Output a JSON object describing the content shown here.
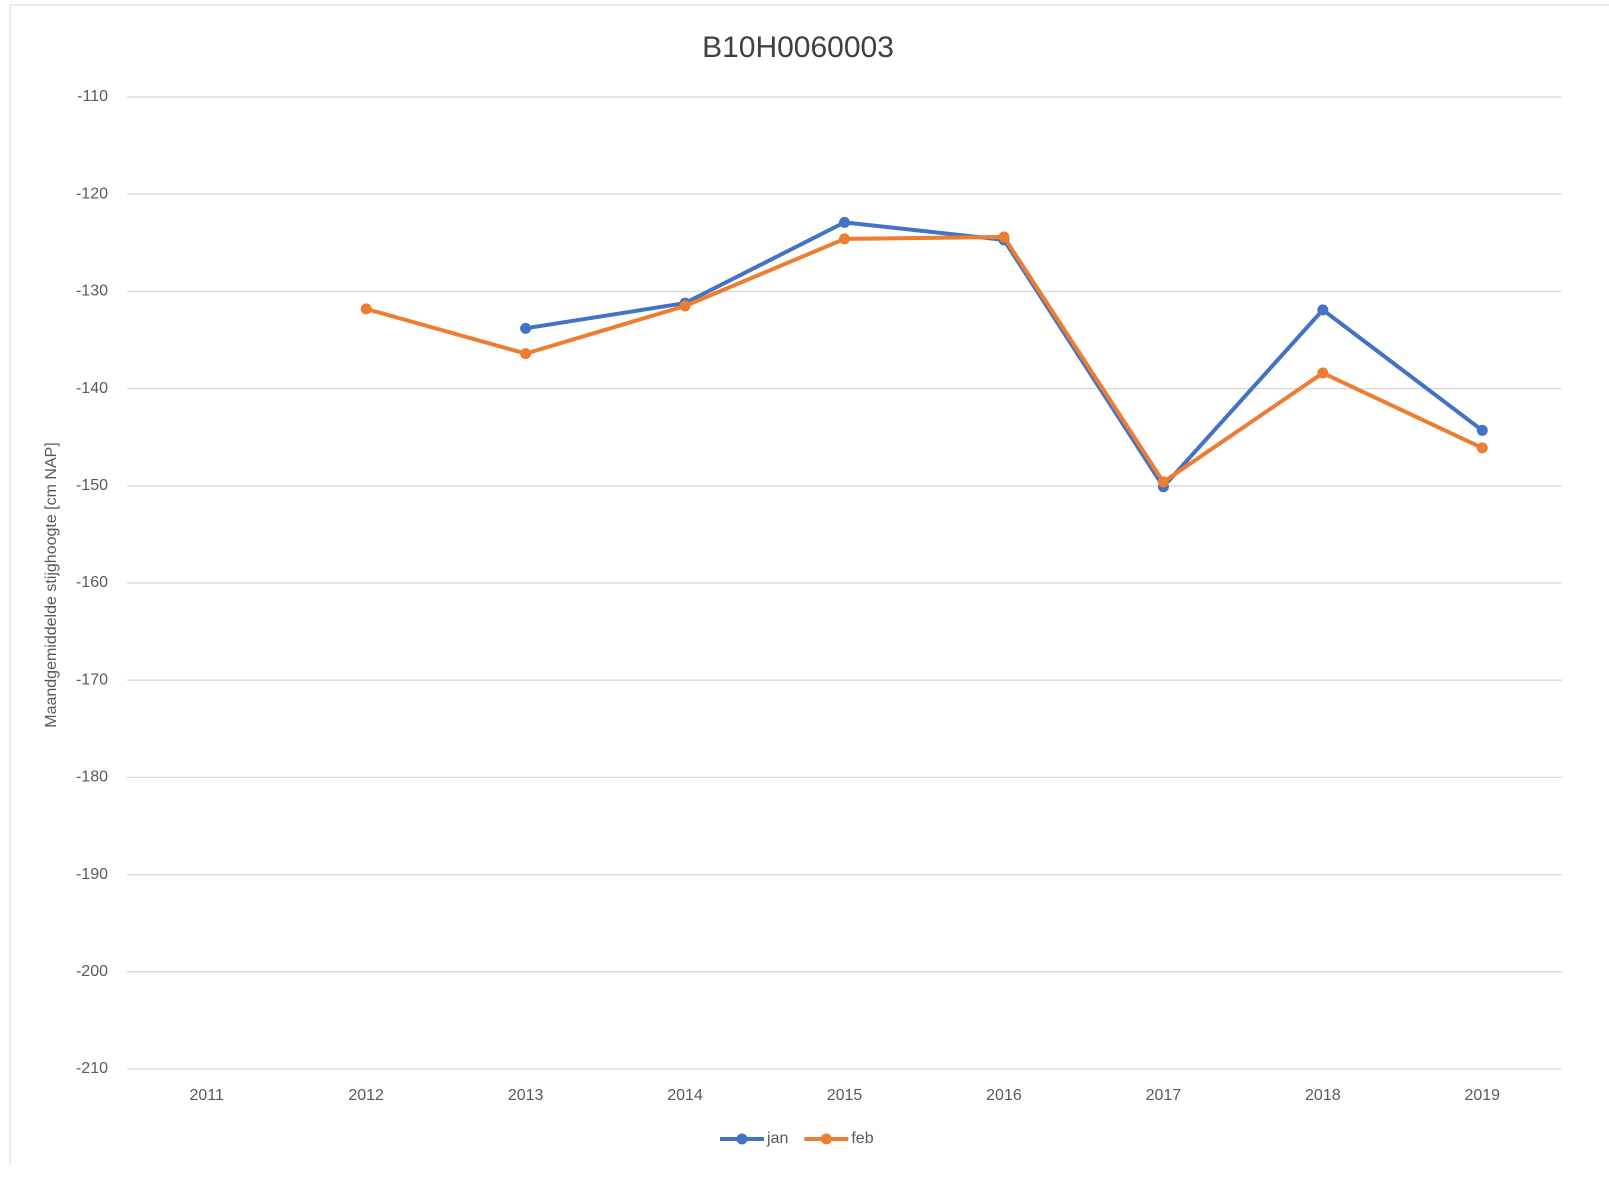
{
  "chart_data": {
    "type": "line",
    "title": "B10H0060003",
    "y_label": "Maandgemiddelde stijghoogte [cm NAP]",
    "categories": [
      "2011",
      "2012",
      "2013",
      "2014",
      "2015",
      "2016",
      "2017",
      "2018",
      "2019"
    ],
    "series": [
      {
        "name": "jan",
        "color": "#4472c4",
        "values": [
          null,
          null,
          -133.8,
          -131.2,
          -122.9,
          -124.7,
          -150.1,
          -131.9,
          -144.3
        ]
      },
      {
        "name": "feb",
        "color": "#ed7d31",
        "values": [
          null,
          -131.8,
          -136.4,
          -131.5,
          -124.6,
          -124.4,
          -149.6,
          -138.4,
          -146.1
        ]
      }
    ],
    "ylim": [
      -210,
      -110
    ],
    "yticks": [
      -210,
      -200,
      -190,
      -180,
      -170,
      -160,
      -150,
      -140,
      -130,
      -120,
      -110
    ],
    "grid": true,
    "legend": "bottom"
  }
}
